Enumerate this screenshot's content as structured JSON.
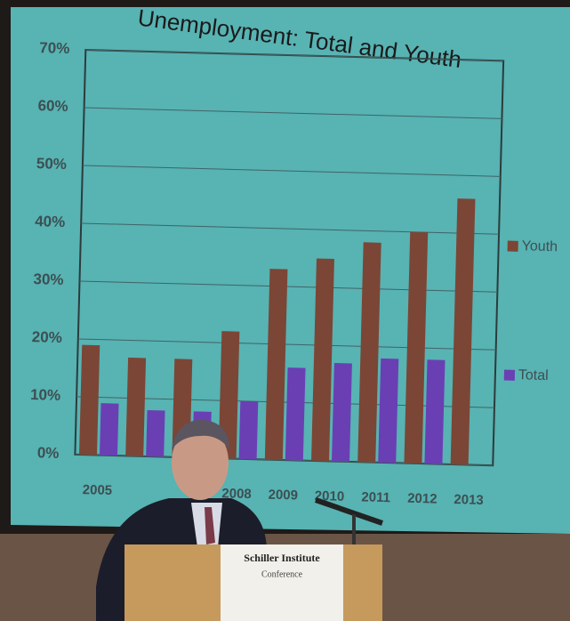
{
  "chart_data": {
    "type": "bar",
    "title": "Unemployment: Total and Youth",
    "categories": [
      "2005",
      null,
      null,
      "2008",
      "2009",
      "2010",
      "2011",
      "2012",
      "2013"
    ],
    "series": [
      {
        "name": "Youth",
        "color": "#7b4636",
        "values": [
          19,
          17,
          17,
          22,
          33,
          35,
          38,
          40,
          46
        ]
      },
      {
        "name": "Total",
        "color": "#6a3fb4",
        "values": [
          9,
          8,
          8,
          10,
          16,
          17,
          18,
          18,
          null
        ]
      }
    ],
    "ylim": [
      0,
      70
    ],
    "yticks": [
      {
        "value": 0,
        "label": "0%"
      },
      {
        "value": 10,
        "label": "10%"
      },
      {
        "value": 20,
        "label": "20%"
      },
      {
        "value": 30,
        "label": "30%"
      },
      {
        "value": 40,
        "label": "40%"
      },
      {
        "value": 50,
        "label": "50%"
      },
      {
        "value": 60,
        "label": "60%"
      },
      {
        "value": 70,
        "label": "70%"
      }
    ],
    "grid": true,
    "legend": "right"
  },
  "podium_sign": [
    "Schiller Institute",
    "Conference"
  ]
}
